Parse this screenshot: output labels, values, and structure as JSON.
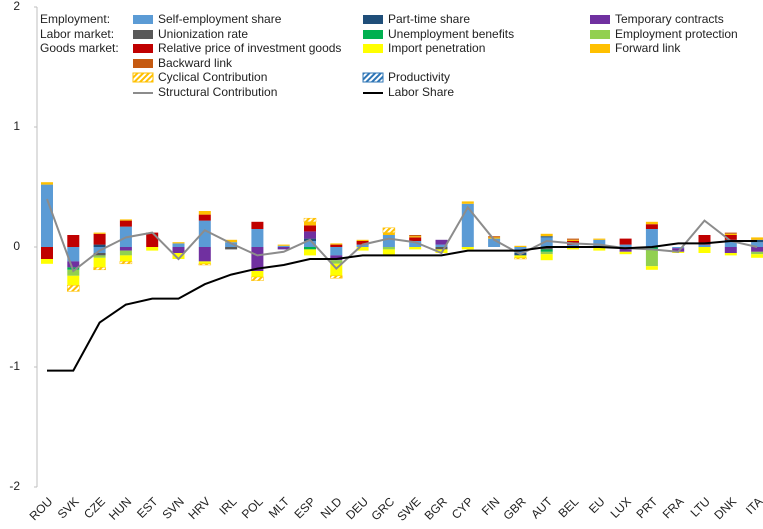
{
  "chart_data": {
    "type": "bar",
    "categories": [
      "ROU",
      "SVK",
      "CZE",
      "HUN",
      "EST",
      "SVN",
      "HRV",
      "IRL",
      "POL",
      "MLT",
      "ESP",
      "NLD",
      "DEU",
      "GRC",
      "SWE",
      "BGR",
      "CYP",
      "FIN",
      "GBR",
      "AUT",
      "BEL",
      "EU",
      "LUX",
      "PRT",
      "FRA",
      "LTU",
      "DNK",
      "ITA"
    ],
    "ylim": [
      -2,
      2
    ],
    "yticks": [
      -2,
      -1,
      0,
      1,
      2
    ],
    "legend_groups": [
      "Employment:",
      "Labor market:",
      "Goods market:"
    ],
    "series": [
      {
        "name": "Self-employment share",
        "color": "#5b9bd5",
        "kind": "bar",
        "values": [
          0.52,
          -0.12,
          -0.05,
          0.17,
          0,
          0.03,
          0.22,
          0.04,
          0.15,
          0.01,
          0.05,
          -0.07,
          0.02,
          0.1,
          0.05,
          0.02,
          0.36,
          0.07,
          -0.05,
          0.08,
          0.02,
          0.06,
          0.02,
          0.15,
          -0.01,
          0.02,
          0.05,
          0.04
        ]
      },
      {
        "name": "Part-time share",
        "color": "#1f4e79",
        "kind": "bar",
        "values": [
          0,
          0,
          0.02,
          0,
          0,
          0,
          0,
          0,
          0,
          0,
          0.02,
          0,
          0,
          0,
          0,
          0,
          0,
          0,
          -0.02,
          0.01,
          0,
          0,
          0,
          0,
          0,
          0,
          0.01,
          0.02
        ]
      },
      {
        "name": "Temporary contracts",
        "color": "#7030a0",
        "kind": "bar",
        "values": [
          0,
          -0.05,
          0,
          -0.03,
          0,
          -0.05,
          -0.12,
          0,
          -0.2,
          -0.02,
          0.06,
          -0.04,
          0,
          0,
          0,
          0.04,
          0,
          0,
          0,
          0,
          0,
          0,
          -0.04,
          0,
          -0.03,
          0,
          -0.05,
          -0.04
        ]
      },
      {
        "name": "Unionization rate",
        "color": "#595959",
        "kind": "bar",
        "values": [
          0,
          0,
          -0.02,
          0,
          0,
          0,
          0,
          -0.02,
          0,
          0,
          0,
          0,
          0,
          0,
          0,
          -0.02,
          0,
          0,
          0,
          -0.02,
          0,
          0,
          0,
          0,
          0,
          0,
          0,
          0
        ]
      },
      {
        "name": "Unemployment benefits",
        "color": "#00b050",
        "kind": "bar",
        "values": [
          0,
          -0.02,
          0,
          0,
          0,
          0,
          0,
          0,
          0,
          0,
          -0.02,
          0,
          0,
          0,
          0,
          0,
          0,
          0,
          0,
          -0.02,
          0,
          0,
          0,
          -0.02,
          0,
          0,
          0,
          0
        ]
      },
      {
        "name": "Employment protection",
        "color": "#92d050",
        "kind": "bar",
        "values": [
          0,
          -0.05,
          -0.02,
          -0.04,
          0,
          0,
          0,
          0,
          0,
          0,
          0,
          -0.03,
          0,
          -0.02,
          0,
          0,
          0,
          0,
          0,
          -0.02,
          0,
          0,
          0,
          -0.14,
          0,
          0,
          0,
          -0.02
        ]
      },
      {
        "name": "Relative price of investment goods",
        "color": "#c00000",
        "kind": "bar",
        "values": [
          -0.1,
          0.1,
          0.09,
          0.05,
          0.12,
          0,
          0.05,
          0,
          0.06,
          0,
          0.05,
          0.02,
          0.03,
          0,
          0.03,
          0,
          0,
          0,
          0,
          0,
          0.03,
          0,
          0.05,
          0.04,
          0,
          0.08,
          0.04,
          0
        ]
      },
      {
        "name": "Import penetration",
        "color": "#ffff00",
        "kind": "bar",
        "values": [
          -0.04,
          -0.08,
          -0.08,
          -0.05,
          -0.03,
          -0.05,
          -0.02,
          0,
          -0.05,
          0,
          -0.05,
          -0.1,
          -0.03,
          -0.05,
          -0.02,
          -0.03,
          -0.02,
          0,
          -0.02,
          -0.05,
          -0.02,
          -0.03,
          -0.02,
          -0.03,
          -0.01,
          -0.05,
          -0.02,
          -0.03
        ]
      },
      {
        "name": "Forward link",
        "color": "#ffc000",
        "kind": "bar",
        "values": [
          0.02,
          0,
          0.01,
          0.01,
          0,
          0.01,
          0.03,
          0.02,
          0,
          0.01,
          0.03,
          0.01,
          0.01,
          0.02,
          0.01,
          0,
          0.02,
          0.01,
          0.01,
          0.02,
          0.01,
          0.01,
          0,
          0.02,
          0,
          0,
          0.01,
          0.02
        ]
      },
      {
        "name": "Backward link",
        "color": "#c55a11",
        "kind": "bar",
        "values": [
          0,
          0,
          0,
          0,
          0,
          0,
          0,
          0,
          0,
          0,
          0,
          0,
          0,
          0,
          0.01,
          0,
          0,
          0.01,
          0,
          0,
          0.01,
          0,
          0,
          0,
          0,
          0,
          0.01,
          0
        ]
      },
      {
        "name": "Cyclical Contribution",
        "color": "#ffc000",
        "kind": "bar",
        "hatch": true,
        "values": [
          0,
          -0.05,
          -0.02,
          -0.02,
          0,
          0,
          -0.01,
          0,
          -0.03,
          0,
          0.03,
          -0.02,
          0,
          0.04,
          0,
          0,
          0,
          0,
          -0.01,
          0,
          0,
          0,
          0,
          0,
          0,
          0,
          0,
          0
        ]
      },
      {
        "name": "Productivity",
        "color": "#2e75b6",
        "kind": "bar",
        "hatch": true,
        "values": [
          0,
          0,
          0,
          0,
          0,
          0,
          0,
          0,
          0,
          0,
          0,
          0,
          0,
          0,
          0,
          0,
          0,
          0,
          0,
          0,
          0,
          0,
          0,
          0,
          0,
          0,
          0,
          0
        ]
      },
      {
        "name": "Structural Contribution",
        "color": "#8c8c8c",
        "kind": "line",
        "values": [
          0.4,
          -0.2,
          -0.03,
          0.08,
          0.12,
          -0.1,
          0.14,
          0.03,
          -0.07,
          -0.04,
          0.06,
          -0.18,
          0.02,
          0.07,
          0.04,
          -0.05,
          0.33,
          0.06,
          -0.06,
          0.05,
          0.03,
          0.02,
          -0.01,
          -0.02,
          -0.04,
          0.22,
          0.05,
          0
        ]
      },
      {
        "name": "Labor Share",
        "color": "#000000",
        "kind": "line",
        "values": [
          -1.03,
          -1.03,
          -0.63,
          -0.48,
          -0.43,
          -0.43,
          -0.31,
          -0.23,
          -0.18,
          -0.15,
          -0.1,
          -0.1,
          -0.07,
          -0.07,
          -0.07,
          -0.07,
          -0.03,
          -0.03,
          -0.03,
          0,
          0,
          0,
          -0.01,
          0,
          0.03,
          0.03,
          0.05,
          0.05
        ]
      }
    ]
  }
}
